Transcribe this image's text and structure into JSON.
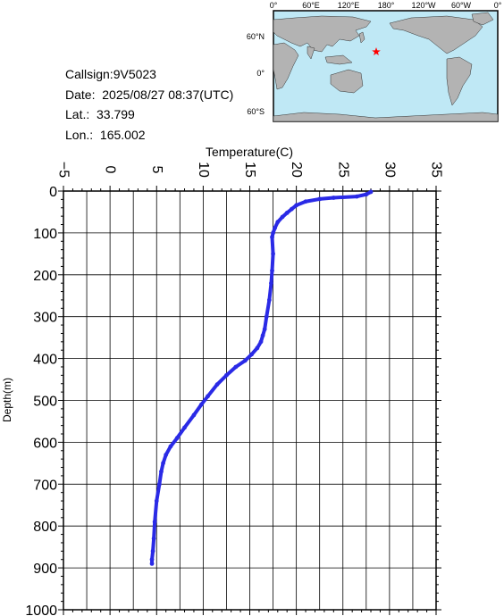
{
  "info": {
    "callsign": "Callsign:9V5023",
    "date": "Date:  2025/08/27 08:37(UTC)",
    "lat": "Lat.:  33.799",
    "lon": "Lon.:  165.002"
  },
  "map": {
    "top_labels": [
      "0°",
      "60°E",
      "120°E",
      "180°",
      "120°W",
      "60°W",
      "0°"
    ],
    "left_labels": [
      "60°N",
      "0°",
      "60°S"
    ],
    "station": {
      "lat": 33.799,
      "lon": 165.002
    },
    "colors": {
      "ocean": "#bfe8f5",
      "land": "#b3b3b3",
      "marker": "#ff0000"
    }
  },
  "chart_data": {
    "type": "line",
    "xlabel": "Temperature(C)",
    "ylabel": "Depth(m)",
    "xlim": [
      -5,
      35
    ],
    "ylim": [
      1000,
      0
    ],
    "x_ticks": [
      -5,
      0,
      5,
      10,
      15,
      20,
      25,
      30,
      35
    ],
    "y_ticks": [
      0,
      100,
      200,
      300,
      400,
      500,
      600,
      700,
      800,
      900,
      1000
    ],
    "x_grid_step": 2.5,
    "y_grid_step": 100,
    "grid": true,
    "series": [
      {
        "color": "#2a2ae6",
        "points": [
          [
            28.0,
            2
          ],
          [
            27.5,
            8
          ],
          [
            26.5,
            13
          ],
          [
            24.0,
            16
          ],
          [
            22.5,
            19
          ],
          [
            21.0,
            25
          ],
          [
            20.0,
            34
          ],
          [
            19.5,
            43
          ],
          [
            19.0,
            52
          ],
          [
            18.5,
            62
          ],
          [
            18.0,
            74
          ],
          [
            17.7,
            88
          ],
          [
            17.5,
            100
          ],
          [
            17.4,
            110
          ],
          [
            17.5,
            150
          ],
          [
            17.4,
            190
          ],
          [
            17.3,
            220
          ],
          [
            17.1,
            260
          ],
          [
            16.8,
            300
          ],
          [
            16.6,
            330
          ],
          [
            16.4,
            345
          ],
          [
            16.2,
            360
          ],
          [
            15.8,
            375
          ],
          [
            15.2,
            390
          ],
          [
            14.5,
            405
          ],
          [
            13.5,
            420
          ],
          [
            12.5,
            440
          ],
          [
            11.5,
            462
          ],
          [
            10.5,
            490
          ],
          [
            9.8,
            510
          ],
          [
            9.0,
            535
          ],
          [
            8.0,
            565
          ],
          [
            7.2,
            590
          ],
          [
            6.5,
            610
          ],
          [
            6.0,
            630
          ],
          [
            5.7,
            650
          ],
          [
            5.5,
            670
          ],
          [
            5.3,
            700
          ],
          [
            5.0,
            740
          ],
          [
            4.8,
            790
          ],
          [
            4.7,
            830
          ],
          [
            4.6,
            860
          ],
          [
            4.5,
            880
          ],
          [
            4.5,
            890
          ]
        ]
      }
    ]
  }
}
